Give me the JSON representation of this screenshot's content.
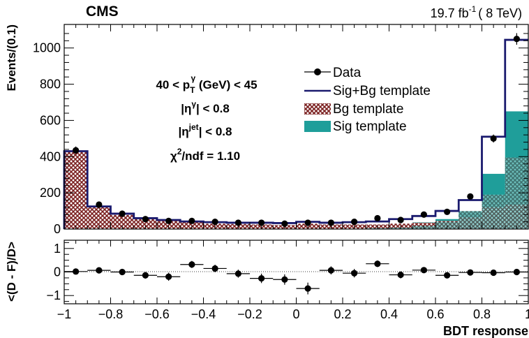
{
  "chart_data": [
    {
      "type": "bar",
      "experiment": "CMS",
      "lumi": {
        "main": "19.7 fb",
        "sup": "-1",
        "tail": "( 8 TeV)"
      },
      "ylabel": "Events/(0.1)",
      "xlim": [
        -1,
        1
      ],
      "ylim": [
        0,
        1130
      ],
      "yticks": [
        0,
        200,
        400,
        600,
        800,
        1000
      ],
      "bin_edges": [
        -1.0,
        -0.9,
        -0.8,
        -0.7,
        -0.6,
        -0.5,
        -0.4,
        -0.3,
        -0.2,
        -0.1,
        0.0,
        0.1,
        0.2,
        0.3,
        0.4,
        0.5,
        0.6,
        0.7,
        0.8,
        0.9,
        1.0
      ],
      "series": [
        {
          "name": "Data",
          "kind": "points",
          "values": [
            435,
            135,
            85,
            55,
            45,
            45,
            40,
            35,
            35,
            30,
            35,
            35,
            40,
            60,
            50,
            80,
            95,
            180,
            500,
            1050
          ],
          "errors": [
            21,
            12,
            9,
            7,
            7,
            7,
            6,
            6,
            6,
            6,
            6,
            6,
            6,
            8,
            7,
            9,
            10,
            13,
            22,
            32
          ]
        },
        {
          "name": "Sig+Bg template",
          "kind": "step",
          "values": [
            430,
            125,
            85,
            60,
            50,
            42,
            38,
            35,
            35,
            33,
            40,
            35,
            38,
            42,
            55,
            72,
            100,
            160,
            510,
            1045
          ]
        },
        {
          "name": "Bg template",
          "kind": "hatched-fill",
          "values": [
            425,
            120,
            78,
            55,
            45,
            38,
            30,
            28,
            25,
            22,
            30,
            25,
            25,
            25,
            30,
            35,
            45,
            65,
            120,
            135
          ]
        },
        {
          "name": "Sig template",
          "kind": "fill",
          "values": [
            0,
            0,
            0,
            0,
            0,
            0,
            0,
            0,
            0,
            0,
            0,
            0,
            0,
            5,
            8,
            18,
            40,
            100,
            190,
            395
          ]
        },
        {
          "name": "",
          "kind": "fill",
          "values": [
            5,
            5,
            7,
            5,
            5,
            4,
            8,
            7,
            10,
            11,
            10,
            10,
            13,
            17,
            25,
            37,
            55,
            95,
            305,
            650
          ]
        }
      ],
      "legend": [
        {
          "label": "Data",
          "symbol": "marker"
        },
        {
          "label": "Sig+Bg template",
          "symbol": "line"
        },
        {
          "label": "Bg template",
          "symbol": "hatch"
        },
        {
          "label": "Sig template",
          "symbol": "fill"
        }
      ],
      "legend_position": "top-right",
      "annotations": {
        "pt_line": {
          "pre": "40 < p",
          "sub": "T",
          "sup": "γ",
          "post": " (GeV) <  45"
        },
        "eta_gamma": {
          "pre": "|η",
          "sup": "γ",
          "post": "| < 0.8"
        },
        "eta_jet": {
          "pre": "|η",
          "sup": "jet",
          "post": "| < 0.8"
        },
        "chi2": {
          "pre": "χ",
          "sup": "2",
          "post": "/ndf = 1.10"
        }
      },
      "colors": {
        "sig": "#1f9e9a",
        "bg_hatch": "#7a1f1f",
        "total": "#1a1a6e"
      }
    },
    {
      "type": "scatter",
      "ylabel": "<(D - F)/D>",
      "xlabel": "BDT response",
      "xlim": [
        -1,
        1
      ],
      "ylim": [
        -1.35,
        1.35
      ],
      "yticks": [
        -1,
        0,
        1
      ],
      "xticks": [
        -1,
        -0.8,
        -0.6,
        -0.4,
        -0.2,
        0,
        0.2,
        0.4,
        0.6,
        0.8,
        1
      ],
      "xtick_labels": [
        "−1",
        "−0.8",
        "−0.6",
        "−0.4",
        "−0.2",
        "0",
        "0.2",
        "0.4",
        "0.6",
        "0.8",
        "1"
      ],
      "ytick_labels": [
        "−1",
        "0",
        "1"
      ],
      "yticks_top": [
        "0",
        "200",
        "400",
        "600",
        "800",
        "1000"
      ],
      "x": [
        -0.95,
        -0.85,
        -0.75,
        -0.65,
        -0.55,
        -0.45,
        -0.35,
        -0.25,
        -0.15,
        -0.05,
        0.05,
        0.15,
        0.25,
        0.35,
        0.45,
        0.55,
        0.65,
        0.75,
        0.85,
        0.95
      ],
      "y": [
        0.02,
        0.07,
        0.0,
        -0.14,
        -0.2,
        0.32,
        0.15,
        -0.07,
        -0.27,
        -0.32,
        -0.7,
        0.07,
        -0.05,
        0.35,
        -0.12,
        0.08,
        -0.14,
        -0.02,
        -0.03,
        0.0
      ],
      "yerr": [
        0.05,
        0.1,
        0.12,
        0.14,
        0.17,
        0.15,
        0.16,
        0.17,
        0.2,
        0.22,
        0.25,
        0.17,
        0.18,
        0.14,
        0.15,
        0.1,
        0.1,
        0.07,
        0.05,
        0.03
      ]
    }
  ]
}
